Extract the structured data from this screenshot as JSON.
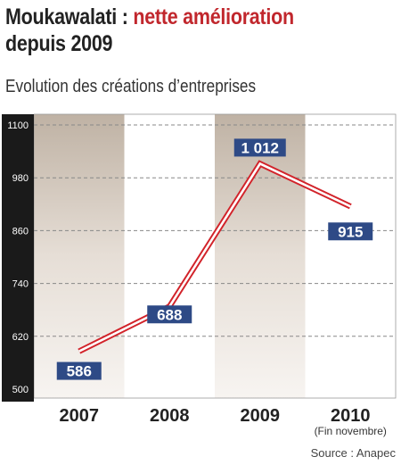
{
  "header": {
    "title_part1": "Moukawalati : ",
    "title_part2": "nette amélioration",
    "title_line2": "depuis 2009",
    "subtitle": "Evolution des créations d’entreprises"
  },
  "chart_data": {
    "type": "line",
    "categories": [
      "2007",
      "2008",
      "2009",
      "2010"
    ],
    "category_notes": [
      "",
      "",
      "",
      "(Fin novembre)"
    ],
    "values": [
      586,
      688,
      1012,
      915
    ],
    "value_labels": [
      "586",
      "688",
      "1 012",
      "915"
    ],
    "yticks": [
      500,
      620,
      740,
      860,
      980,
      1100
    ],
    "ylim": [
      500,
      1100
    ],
    "grid": true,
    "colors": {
      "line": "#d2232a",
      "label_bg": "#2e4a86",
      "label_text": "#ffffff",
      "axis_band": "#1a1a1a",
      "shaded_column": "#c8bdb1",
      "grid": "#888888"
    }
  },
  "footer": {
    "source": "Source : Anapec"
  }
}
